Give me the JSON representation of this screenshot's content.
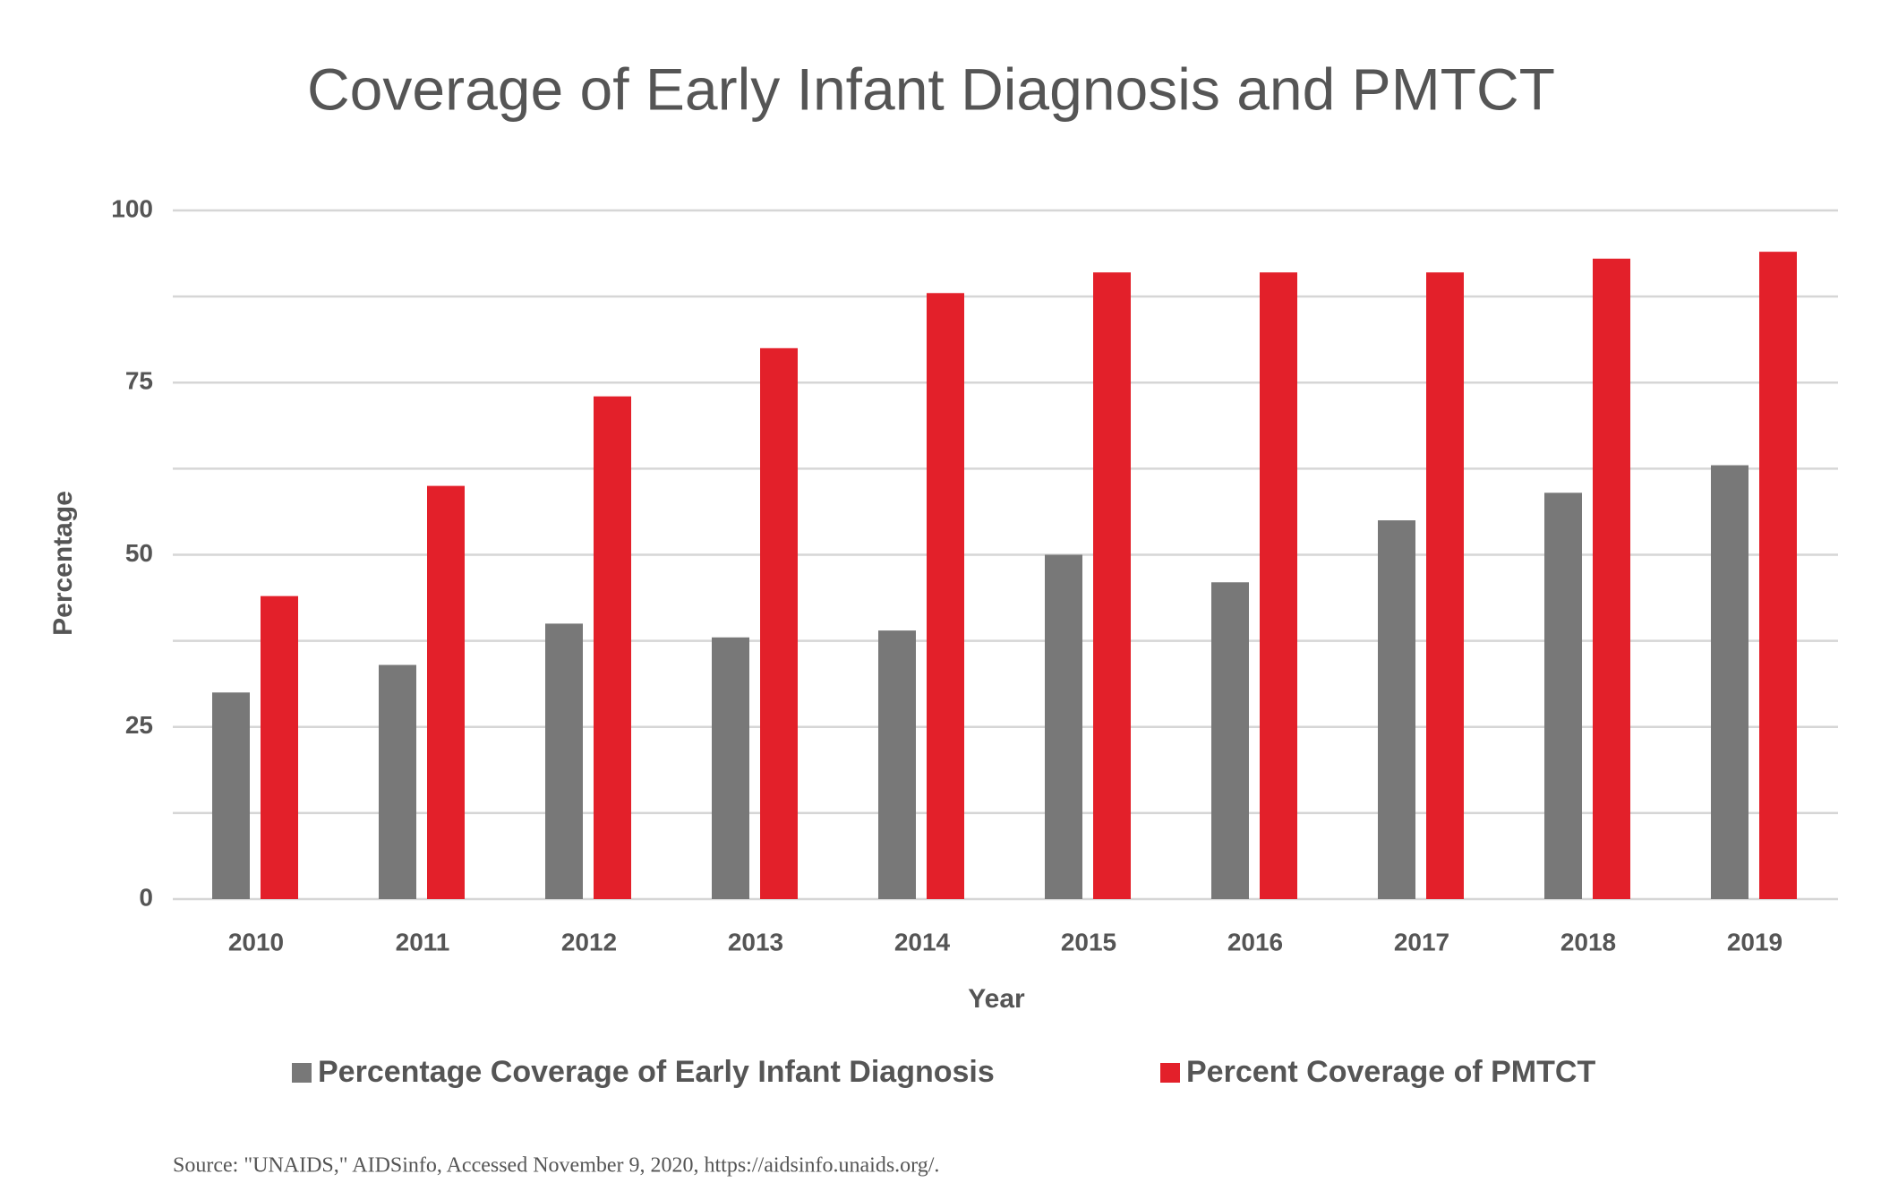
{
  "chart_data": {
    "type": "bar",
    "title": "Coverage of Early Infant Diagnosis and PMTCT",
    "x_label": "Year",
    "y_label": "Percentage",
    "categories": [
      "2010",
      "2011",
      "2012",
      "2013",
      "2014",
      "2015",
      "2016",
      "2017",
      "2018",
      "2019"
    ],
    "series": [
      {
        "name": "Percentage Coverage of Early Infant Diagnosis",
        "color": "#787878",
        "values": [
          30,
          34,
          40,
          38,
          39,
          50,
          46,
          55,
          59,
          63
        ]
      },
      {
        "name": "Percent Coverage of PMTCT",
        "color": "#e3202a",
        "values": [
          44,
          60,
          73,
          80,
          88,
          91,
          91,
          91,
          93,
          94
        ]
      }
    ],
    "ylim": [
      0,
      100
    ],
    "yticks": [
      0,
      25,
      50,
      75,
      100
    ],
    "grid": true,
    "legend": "bottom",
    "source": "Source: \"UNAIDS,\"  AIDSinfo, Accessed November 9, 2020, https://aidsinfo.unaids.org/."
  }
}
